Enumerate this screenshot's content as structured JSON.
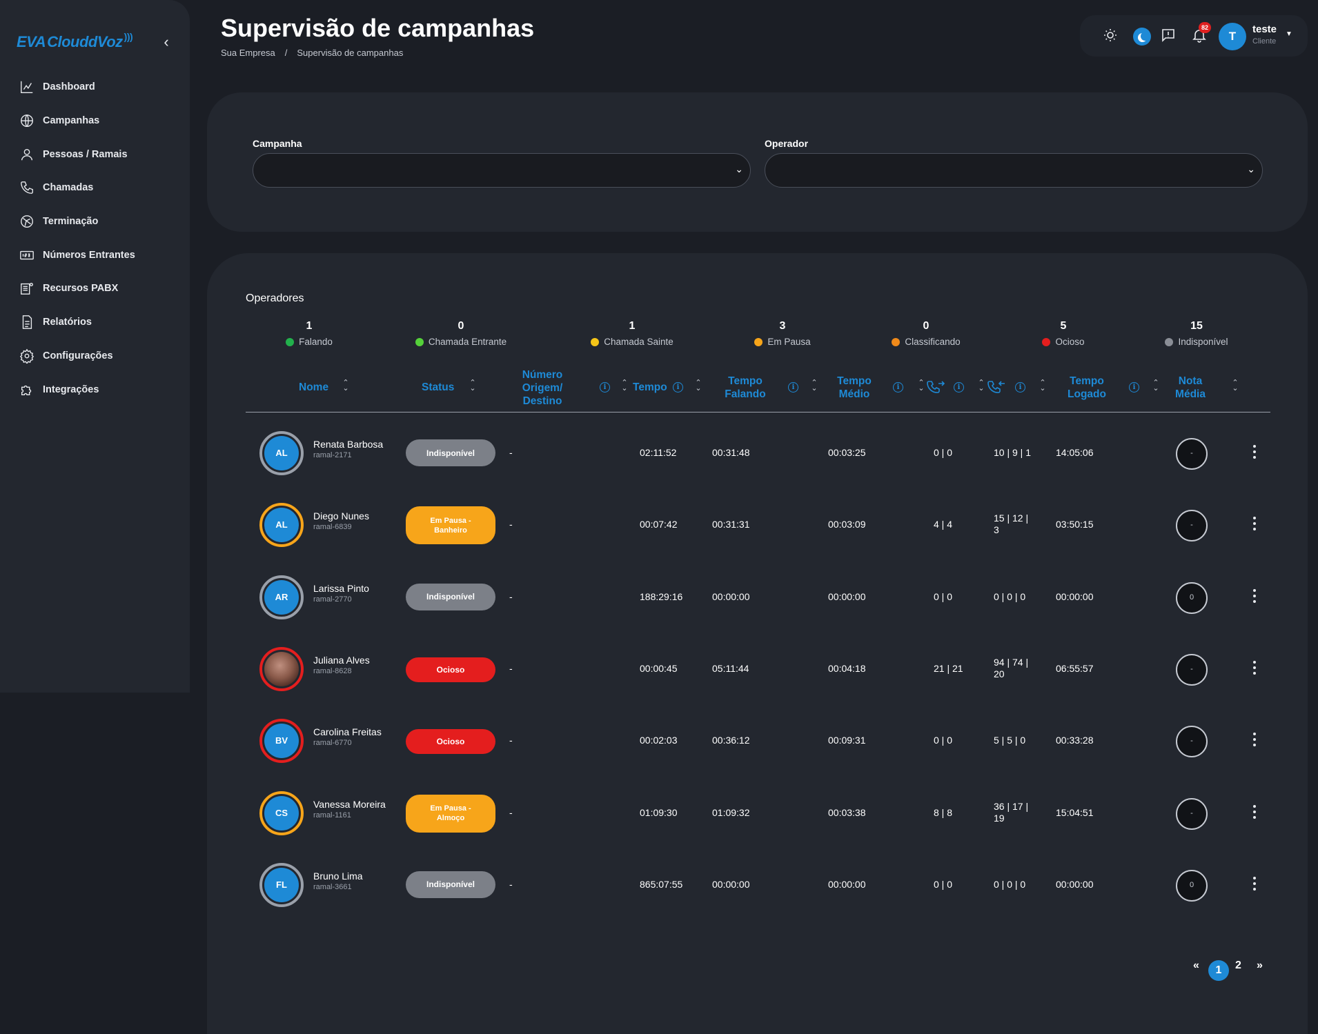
{
  "app": {
    "logo_a": "EVA",
    "logo_b": "ClouddVoz",
    "collapse_icon": "chevron-left-icon"
  },
  "sidebar": {
    "items": [
      {
        "label": "Dashboard",
        "icon": "chart-icon"
      },
      {
        "label": "Campanhas",
        "icon": "globe-icon"
      },
      {
        "label": "Pessoas / Ramais",
        "icon": "person-icon"
      },
      {
        "label": "Chamadas",
        "icon": "phone-icon"
      },
      {
        "label": "Terminação",
        "icon": "network-icon"
      },
      {
        "label": "Números Entrantes",
        "icon": "number-icon"
      },
      {
        "label": "Recursos PABX",
        "icon": "pabx-icon"
      },
      {
        "label": "Relatórios",
        "icon": "document-icon"
      },
      {
        "label": "Configurações",
        "icon": "gear-icon"
      },
      {
        "label": "Integrações",
        "icon": "puzzle-icon"
      }
    ]
  },
  "header": {
    "title": "Supervisão de campanhas",
    "breadcrumb": [
      "Sua Empresa",
      "/",
      "Supervisão de campanhas"
    ]
  },
  "topbar": {
    "notifications": "82",
    "user_initial": "T",
    "user_name": "teste",
    "user_role": "Cliente"
  },
  "filters": {
    "campaign_label": "Campanha",
    "campaign_value": "",
    "operator_label": "Operador",
    "operator_value": ""
  },
  "operators": {
    "title": "Operadores",
    "stats": [
      {
        "count": "1",
        "label": "Falando",
        "color": "#22b14c"
      },
      {
        "count": "0",
        "label": "Chamada Entrante",
        "color": "#55d13a"
      },
      {
        "count": "1",
        "label": "Chamada Sainte",
        "color": "#f5c518"
      },
      {
        "count": "3",
        "label": "Em Pausa",
        "color": "#f7a51a"
      },
      {
        "count": "0",
        "label": "Classificando",
        "color": "#f08a1a"
      },
      {
        "count": "5",
        "label": "Ocioso",
        "color": "#e41e1e"
      },
      {
        "count": "15",
        "label": "Indisponível",
        "color": "#8a8e96"
      }
    ],
    "columns": {
      "nome": "Nome",
      "status": "Status",
      "numero_1": "Número",
      "numero_2": "Origem/",
      "numero_3": "Destino",
      "tempo": "Tempo",
      "tempo_falando_1": "Tempo",
      "tempo_falando_2": "Falando",
      "tempo_medio_1": "Tempo",
      "tempo_medio_2": "Médio",
      "tempo_logado_1": "Tempo",
      "tempo_logado_2": "Logado",
      "nota_1": "Nota",
      "nota_2": "Média",
      "incoming_icon": "phone-incoming-icon",
      "outgoing_icon": "phone-outgoing-icon",
      "info_glyph": "i"
    },
    "rows": [
      {
        "initials": "AL",
        "name": "Renata Barbosa",
        "ramal": "ramal-2171",
        "status": "Indisponível",
        "status_kind": "grey",
        "ring": "#9aa0aa",
        "numero": "-",
        "tempo": "02:11:52",
        "falando": "00:31:48",
        "medio": "00:03:25",
        "in_calls": "0 | 0",
        "out_calls": "10 | 9 | 1",
        "logado": "14:05:06",
        "nota": "-"
      },
      {
        "initials": "AL",
        "name": "Diego Nunes",
        "ramal": "ramal-6839",
        "status": "Em Pausa - Banheiro",
        "status_kind": "orange",
        "ring": "#f7a51a",
        "numero": "-",
        "tempo": "00:07:42",
        "falando": "00:31:31",
        "medio": "00:03:09",
        "in_calls": "4 | 4",
        "out_calls": "15 | 12 | 3",
        "logado": "03:50:15",
        "nota": "-"
      },
      {
        "initials": "AR",
        "name": "Larissa Pinto",
        "ramal": "ramal-2770",
        "status": "Indisponível",
        "status_kind": "grey",
        "ring": "#9aa0aa",
        "numero": "-",
        "tempo": "188:29:16",
        "falando": "00:00:00",
        "medio": "00:00:00",
        "in_calls": "0 | 0",
        "out_calls": "0 | 0 | 0",
        "logado": "00:00:00",
        "nota": "0"
      },
      {
        "initials": "",
        "name": "Juliana Alves",
        "ramal": "ramal-8628",
        "status": "Ocioso",
        "status_kind": "red",
        "ring": "#e41e1e",
        "numero": "-",
        "tempo": "00:00:45",
        "falando": "05:11:44",
        "medio": "00:04:18",
        "in_calls": "21 | 21",
        "out_calls": "94 | 74 | 20",
        "logado": "06:55:57",
        "nota": "-",
        "photo": true
      },
      {
        "initials": "BV",
        "name": "Carolina Freitas",
        "ramal": "ramal-6770",
        "status": "Ocioso",
        "status_kind": "red",
        "ring": "#e41e1e",
        "numero": "-",
        "tempo": "00:02:03",
        "falando": "00:36:12",
        "medio": "00:09:31",
        "in_calls": "0 | 0",
        "out_calls": "5 | 5 | 0",
        "logado": "00:33:28",
        "nota": "-"
      },
      {
        "initials": "CS",
        "name": "Vanessa Moreira",
        "ramal": "ramal-1161",
        "status": "Em Pausa - Almoço",
        "status_kind": "orange",
        "ring": "#f7a51a",
        "numero": "-",
        "tempo": "01:09:30",
        "falando": "01:09:32",
        "medio": "00:03:38",
        "in_calls": "8 | 8",
        "out_calls": "36 | 17 | 19",
        "logado": "15:04:51",
        "nota": "-"
      },
      {
        "initials": "FL",
        "name": "Bruno Lima",
        "ramal": "ramal-3661",
        "status": "Indisponível",
        "status_kind": "grey",
        "ring": "#9aa0aa",
        "numero": "-",
        "tempo": "865:07:55",
        "falando": "00:00:00",
        "medio": "00:00:00",
        "in_calls": "0 | 0",
        "out_calls": "0 | 0 | 0",
        "logado": "00:00:00",
        "nota": "0"
      }
    ]
  },
  "pagination": {
    "first": "«",
    "pages": [
      "1",
      "2"
    ],
    "current": "1",
    "last": "»"
  }
}
